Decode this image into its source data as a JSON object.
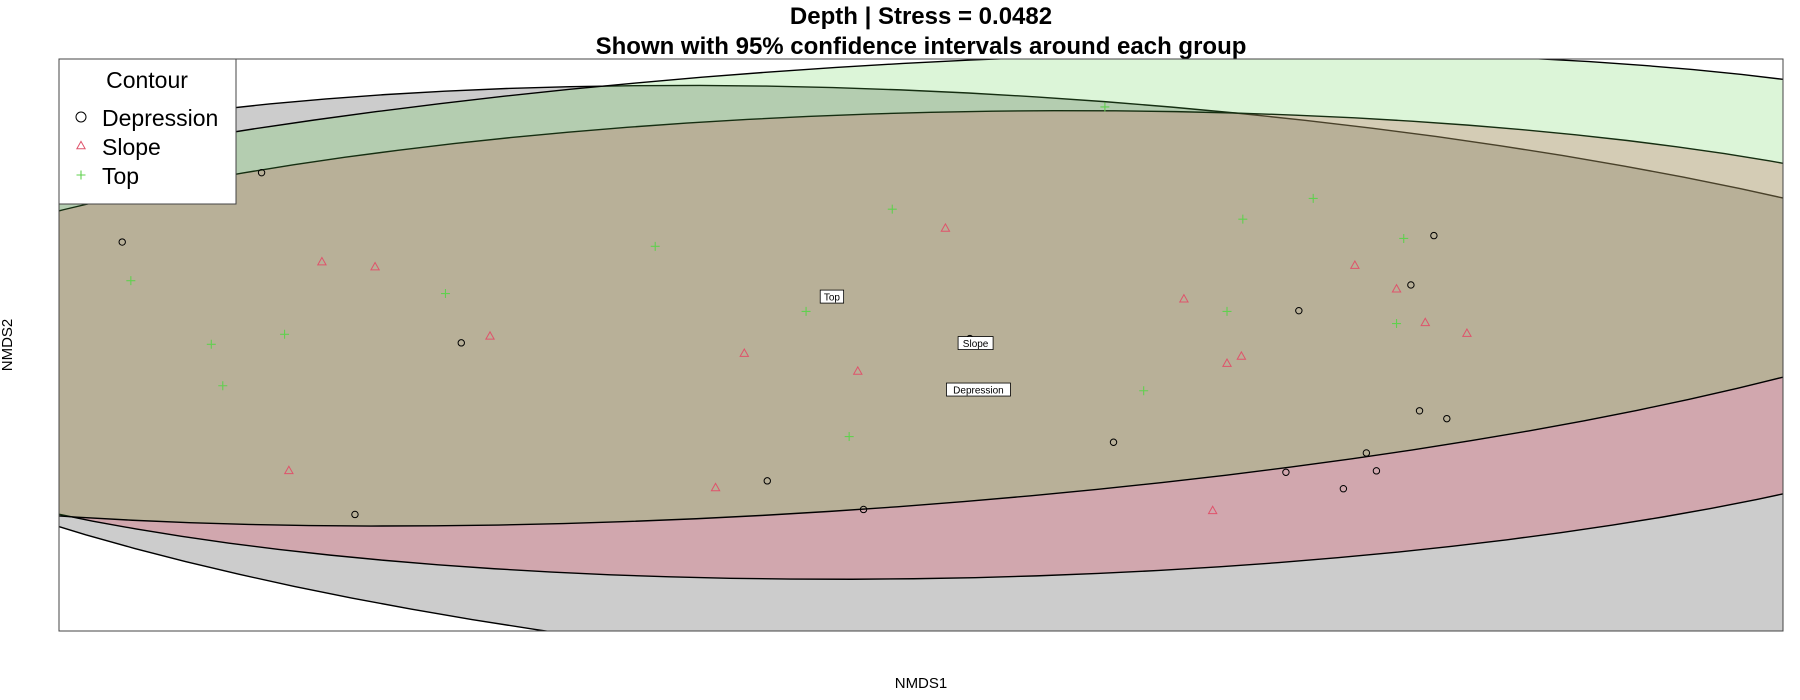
{
  "chart_data": {
    "type": "scatter",
    "title": "Depth | Stress = 0.0482",
    "subtitle": "Shown with 95% confidence intervals around each group",
    "xlabel": "NMDS1",
    "ylabel": "NMDS2",
    "xlim": [
      -0.6,
      0.6
    ],
    "ylim": [
      -0.4,
      0.4
    ],
    "grid": false,
    "legend": {
      "title": "Contour",
      "position": "top-left",
      "entries": [
        {
          "label": "Depression",
          "marker": "circle",
          "color": "#000000"
        },
        {
          "label": "Slope",
          "marker": "triangle",
          "color": "#DF536B"
        },
        {
          "label": "Top",
          "marker": "plus",
          "color": "#61D04F"
        }
      ]
    },
    "series": [
      {
        "name": "Depression",
        "marker": "circle",
        "color": "#000000",
        "ellipse_fill": "rgba(120,120,120,0.38)",
        "points": [
          [
            -0.459,
            0.241
          ],
          [
            -0.556,
            0.144
          ],
          [
            -0.32,
            0.003
          ],
          [
            -0.394,
            -0.237
          ],
          [
            -0.107,
            -0.19
          ],
          [
            -0.04,
            -0.23
          ],
          [
            0.034,
            0.009
          ],
          [
            0.134,
            -0.136
          ],
          [
            0.254,
            -0.178
          ],
          [
            0.263,
            0.048
          ],
          [
            0.317,
            -0.176
          ],
          [
            0.294,
            -0.201
          ],
          [
            0.341,
            0.084
          ],
          [
            0.347,
            -0.092
          ],
          [
            0.366,
            -0.103
          ],
          [
            0.357,
            0.153
          ],
          [
            0.31,
            -0.151
          ]
        ],
        "centroid": [
          0.04,
          -0.063
        ],
        "centroid_label": "Depression"
      },
      {
        "name": "Slope",
        "marker": "triangle",
        "color": "#DF536B",
        "ellipse_fill": "rgba(223,83,107,0.30)",
        "points": [
          [
            -0.417,
            0.116
          ],
          [
            -0.38,
            0.109
          ],
          [
            -0.3,
            0.012
          ],
          [
            -0.44,
            -0.176
          ],
          [
            -0.123,
            -0.012
          ],
          [
            -0.143,
            -0.2
          ],
          [
            -0.044,
            -0.037
          ],
          [
            0.017,
            0.163
          ],
          [
            0.183,
            0.064
          ],
          [
            0.213,
            -0.026
          ],
          [
            0.223,
            -0.016
          ],
          [
            0.302,
            0.111
          ],
          [
            0.331,
            0.078
          ],
          [
            0.351,
            0.031
          ],
          [
            0.38,
            0.016
          ],
          [
            0.203,
            -0.232
          ]
        ],
        "centroid": [
          0.038,
          0.002
        ],
        "centroid_label": "Slope"
      },
      {
        "name": "Top",
        "marker": "plus",
        "color": "#61D04F",
        "ellipse_fill": "rgba(97,208,79,0.22)",
        "points": [
          [
            -0.55,
            0.09
          ],
          [
            -0.494,
            0.001
          ],
          [
            -0.486,
            -0.057
          ],
          [
            -0.443,
            0.015
          ],
          [
            -0.331,
            0.072
          ],
          [
            -0.185,
            0.138
          ],
          [
            -0.08,
            0.047
          ],
          [
            -0.05,
            -0.128
          ],
          [
            -0.02,
            0.19
          ],
          [
            0.128,
            0.333
          ],
          [
            0.155,
            -0.064
          ],
          [
            0.213,
            0.047
          ],
          [
            0.224,
            0.176
          ],
          [
            0.273,
            0.205
          ],
          [
            0.336,
            0.149
          ],
          [
            0.331,
            0.03
          ]
        ],
        "centroid": [
          -0.062,
          0.067
        ],
        "centroid_label": "Top"
      }
    ]
  }
}
